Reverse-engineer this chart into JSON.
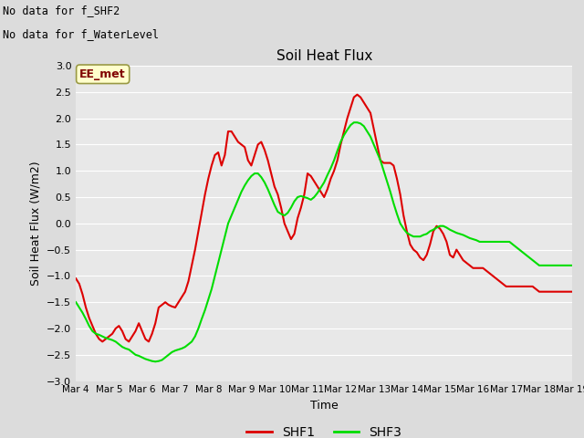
{
  "title": "Soil Heat Flux",
  "xlabel": "Time",
  "ylabel": "Soil Heat Flux (W/m2)",
  "ylim": [
    -3.0,
    3.0
  ],
  "yticks": [
    -3.0,
    -2.5,
    -2.0,
    -1.5,
    -1.0,
    -0.5,
    0.0,
    0.5,
    1.0,
    1.5,
    2.0,
    2.5,
    3.0
  ],
  "xtick_labels": [
    "Mar 4",
    "Mar 5",
    "Mar 6",
    "Mar 7",
    "Mar 8",
    "Mar 9",
    "Mar 10",
    "Mar 11",
    "Mar 12",
    "Mar 13",
    "Mar 14",
    "Mar 15",
    "Mar 16",
    "Mar 17",
    "Mar 18",
    "Mar 19"
  ],
  "background_color": "#dcdcdc",
  "plot_bg_color": "#e8e8e8",
  "grid_color": "#ffffff",
  "no_data_text1": "No data for f_SHF2",
  "no_data_text2": "No data for f_WaterLevel",
  "ee_met_label": "EE_met",
  "ee_met_box_facecolor": "#ffffcc",
  "ee_met_box_edgecolor": "#999944",
  "ee_met_text_color": "#800000",
  "line1_color": "#dd0000",
  "line2_color": "#00dd00",
  "line1_label": "SHF1",
  "line2_label": "SHF3",
  "shf1_x": [
    0,
    0.1,
    0.2,
    0.3,
    0.4,
    0.5,
    0.6,
    0.7,
    0.8,
    0.9,
    1.0,
    1.1,
    1.2,
    1.3,
    1.4,
    1.5,
    1.6,
    1.7,
    1.8,
    1.9,
    2.0,
    2.1,
    2.2,
    2.3,
    2.4,
    2.5,
    2.6,
    2.7,
    2.8,
    2.9,
    3.0,
    3.1,
    3.2,
    3.3,
    3.4,
    3.5,
    3.6,
    3.7,
    3.8,
    3.9,
    4.0,
    4.1,
    4.2,
    4.3,
    4.4,
    4.5,
    4.6,
    4.7,
    4.8,
    4.9,
    5.0,
    5.1,
    5.2,
    5.3,
    5.4,
    5.5,
    5.6,
    5.7,
    5.8,
    5.9,
    6.0,
    6.1,
    6.2,
    6.3,
    6.4,
    6.5,
    6.6,
    6.7,
    6.8,
    6.9,
    7.0,
    7.1,
    7.2,
    7.3,
    7.4,
    7.5,
    7.6,
    7.7,
    7.8,
    7.9,
    8.0,
    8.1,
    8.2,
    8.3,
    8.4,
    8.5,
    8.6,
    8.7,
    8.8,
    8.9,
    9.0,
    9.1,
    9.2,
    9.3,
    9.4,
    9.5,
    9.6,
    9.7,
    9.8,
    9.9,
    10.0,
    10.1,
    10.2,
    10.3,
    10.4,
    10.5,
    10.6,
    10.7,
    10.8,
    10.9,
    11.0,
    11.1,
    11.2,
    11.3,
    11.4,
    11.5,
    11.6,
    11.7,
    11.8,
    11.9,
    12.0,
    12.1,
    12.2,
    12.3,
    12.4,
    12.5,
    12.6,
    12.7,
    12.8,
    12.9,
    13.0,
    13.1,
    13.2,
    13.3,
    13.4,
    13.5,
    13.6,
    13.7,
    13.8,
    13.9,
    14.0,
    14.1,
    14.2,
    14.3,
    14.4,
    14.5,
    14.6,
    14.7,
    14.8,
    14.9,
    15.0
  ],
  "shf1_y": [
    -1.05,
    -1.15,
    -1.35,
    -1.6,
    -1.8,
    -1.95,
    -2.1,
    -2.2,
    -2.25,
    -2.2,
    -2.15,
    -2.1,
    -2.0,
    -1.95,
    -2.05,
    -2.2,
    -2.25,
    -2.15,
    -2.05,
    -1.9,
    -2.05,
    -2.2,
    -2.25,
    -2.1,
    -1.9,
    -1.6,
    -1.55,
    -1.5,
    -1.55,
    -1.58,
    -1.6,
    -1.5,
    -1.4,
    -1.3,
    -1.1,
    -0.8,
    -0.5,
    -0.15,
    0.2,
    0.55,
    0.85,
    1.1,
    1.3,
    1.35,
    1.1,
    1.3,
    1.75,
    1.75,
    1.65,
    1.55,
    1.5,
    1.45,
    1.2,
    1.1,
    1.3,
    1.5,
    1.55,
    1.4,
    1.2,
    0.95,
    0.7,
    0.55,
    0.3,
    0.0,
    -0.15,
    -0.3,
    -0.2,
    0.1,
    0.3,
    0.55,
    0.95,
    0.9,
    0.8,
    0.7,
    0.6,
    0.5,
    0.65,
    0.85,
    1.0,
    1.2,
    1.5,
    1.75,
    2.0,
    2.2,
    2.4,
    2.45,
    2.4,
    2.3,
    2.2,
    2.1,
    1.8,
    1.5,
    1.2,
    1.15,
    1.15,
    1.15,
    1.1,
    0.85,
    0.55,
    0.15,
    -0.15,
    -0.4,
    -0.5,
    -0.55,
    -0.65,
    -0.7,
    -0.6,
    -0.4,
    -0.15,
    -0.05,
    -0.1,
    -0.2,
    -0.35,
    -0.6,
    -0.65,
    -0.5,
    -0.6,
    -0.7,
    -0.75,
    -0.8,
    -0.85,
    -0.85,
    -0.85,
    -0.85,
    -0.9,
    -0.95,
    -1.0,
    -1.05,
    -1.1,
    -1.15,
    -1.2,
    -1.2,
    -1.2,
    -1.2,
    -1.2,
    -1.2,
    -1.2,
    -1.2,
    -1.2,
    -1.25,
    -1.3,
    -1.3,
    -1.3,
    -1.3,
    -1.3,
    -1.3,
    -1.3,
    -1.3,
    -1.3,
    -1.3,
    -1.3
  ],
  "shf3_x": [
    0,
    0.1,
    0.2,
    0.3,
    0.4,
    0.5,
    0.6,
    0.7,
    0.8,
    0.9,
    1.0,
    1.1,
    1.2,
    1.3,
    1.4,
    1.5,
    1.6,
    1.7,
    1.8,
    1.9,
    2.0,
    2.1,
    2.2,
    2.3,
    2.4,
    2.5,
    2.6,
    2.7,
    2.8,
    2.9,
    3.0,
    3.1,
    3.2,
    3.3,
    3.4,
    3.5,
    3.6,
    3.7,
    3.8,
    3.9,
    4.0,
    4.1,
    4.2,
    4.3,
    4.4,
    4.5,
    4.6,
    4.7,
    4.8,
    4.9,
    5.0,
    5.1,
    5.2,
    5.3,
    5.4,
    5.5,
    5.6,
    5.7,
    5.8,
    5.9,
    6.0,
    6.1,
    6.2,
    6.3,
    6.4,
    6.5,
    6.6,
    6.7,
    6.8,
    6.9,
    7.0,
    7.1,
    7.2,
    7.3,
    7.4,
    7.5,
    7.6,
    7.7,
    7.8,
    7.9,
    8.0,
    8.1,
    8.2,
    8.3,
    8.4,
    8.5,
    8.6,
    8.7,
    8.8,
    8.9,
    9.0,
    9.1,
    9.2,
    9.3,
    9.4,
    9.5,
    9.6,
    9.7,
    9.8,
    9.9,
    10.0,
    10.1,
    10.2,
    10.3,
    10.4,
    10.5,
    10.6,
    10.7,
    10.8,
    10.9,
    11.0,
    11.1,
    11.2,
    11.3,
    11.4,
    11.5,
    11.6,
    11.7,
    11.8,
    11.9,
    12.0,
    12.1,
    12.2,
    12.3,
    12.4,
    12.5,
    12.6,
    12.7,
    12.8,
    12.9,
    13.0,
    13.1,
    13.2,
    13.3,
    13.4,
    13.5,
    13.6,
    13.7,
    13.8,
    13.9,
    14.0,
    14.1,
    14.2,
    14.3,
    14.4,
    14.5,
    14.6,
    14.7,
    14.8,
    14.9,
    15.0
  ],
  "shf3_y": [
    -1.5,
    -1.6,
    -1.7,
    -1.82,
    -1.95,
    -2.05,
    -2.1,
    -2.12,
    -2.15,
    -2.18,
    -2.2,
    -2.22,
    -2.25,
    -2.3,
    -2.35,
    -2.38,
    -2.4,
    -2.45,
    -2.5,
    -2.52,
    -2.55,
    -2.58,
    -2.6,
    -2.62,
    -2.63,
    -2.62,
    -2.6,
    -2.55,
    -2.5,
    -2.45,
    -2.42,
    -2.4,
    -2.38,
    -2.35,
    -2.3,
    -2.25,
    -2.15,
    -2.0,
    -1.82,
    -1.65,
    -1.45,
    -1.25,
    -1.0,
    -0.75,
    -0.5,
    -0.25,
    0.0,
    0.15,
    0.3,
    0.45,
    0.6,
    0.72,
    0.82,
    0.9,
    0.95,
    0.95,
    0.88,
    0.78,
    0.65,
    0.5,
    0.35,
    0.22,
    0.18,
    0.15,
    0.2,
    0.3,
    0.42,
    0.5,
    0.52,
    0.5,
    0.48,
    0.45,
    0.5,
    0.58,
    0.68,
    0.78,
    0.92,
    1.05,
    1.2,
    1.38,
    1.55,
    1.68,
    1.78,
    1.87,
    1.92,
    1.92,
    1.9,
    1.85,
    1.75,
    1.65,
    1.5,
    1.35,
    1.2,
    1.0,
    0.8,
    0.6,
    0.38,
    0.18,
    0.0,
    -0.1,
    -0.18,
    -0.22,
    -0.25,
    -0.25,
    -0.25,
    -0.22,
    -0.2,
    -0.15,
    -0.12,
    -0.08,
    -0.05,
    -0.05,
    -0.08,
    -0.12,
    -0.15,
    -0.18,
    -0.2,
    -0.22,
    -0.25,
    -0.28,
    -0.3,
    -0.32,
    -0.35,
    -0.35,
    -0.35,
    -0.35,
    -0.35,
    -0.35,
    -0.35,
    -0.35,
    -0.35,
    -0.35,
    -0.4,
    -0.45,
    -0.5,
    -0.55,
    -0.6,
    -0.65,
    -0.7,
    -0.75,
    -0.8,
    -0.8,
    -0.8,
    -0.8,
    -0.8,
    -0.8,
    -0.8,
    -0.8,
    -0.8,
    -0.8,
    -0.8
  ]
}
